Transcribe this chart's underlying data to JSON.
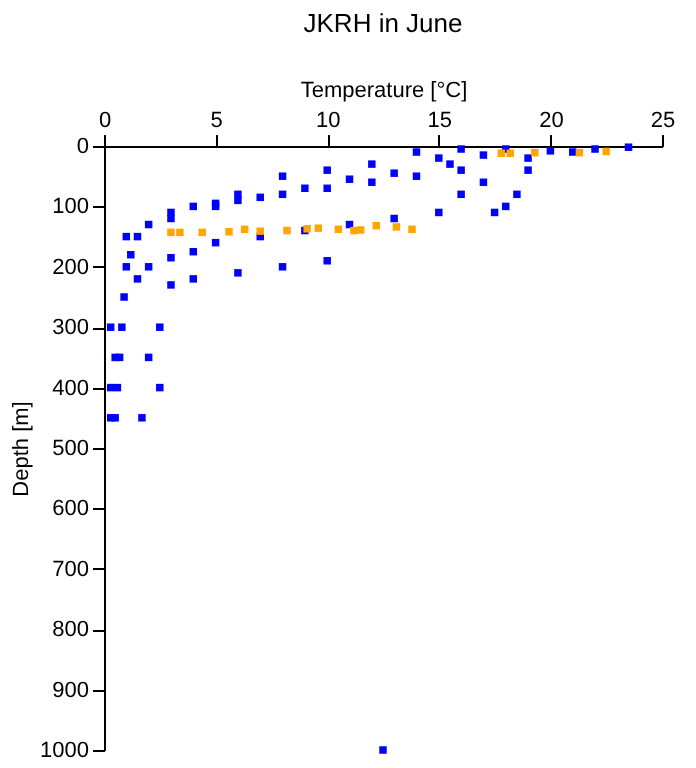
{
  "chart_data": {
    "type": "scatter",
    "title": "JKRH in June",
    "xlabel": "Temperature [°C]",
    "ylabel": "Depth [m]",
    "xlim": [
      0,
      25
    ],
    "xticks": [
      0,
      5,
      10,
      15,
      20,
      25
    ],
    "ylim": [
      1000,
      0
    ],
    "yticks": [
      0,
      100,
      200,
      300,
      400,
      500,
      600,
      700,
      800,
      900,
      1000
    ],
    "grid": false,
    "marker": "square",
    "series": [
      {
        "color": "#0000ff",
        "x": [
          23.5,
          22,
          20,
          18,
          17,
          16,
          15,
          14,
          12,
          10,
          8,
          6,
          4,
          3,
          2,
          1.5,
          1.2,
          1,
          0.9,
          0.8,
          0.7,
          0.6,
          0.5,
          17,
          16,
          15,
          13,
          11,
          9,
          7,
          5,
          4,
          3,
          2,
          1.5,
          10,
          8,
          6,
          4,
          3,
          17.5,
          18,
          18.5,
          19,
          16,
          14,
          12,
          10,
          8,
          6,
          5,
          3,
          1,
          0.3,
          2.5,
          0.5,
          2,
          0.3,
          2.5,
          0.3,
          1.7,
          12.5,
          21,
          19,
          15.5,
          13,
          11,
          9,
          7,
          5
        ],
        "values": [
          2,
          5,
          8,
          5,
          15,
          5,
          20,
          10,
          30,
          40,
          50,
          80,
          100,
          110,
          130,
          150,
          180,
          200,
          250,
          300,
          350,
          400,
          450,
          60,
          80,
          110,
          120,
          130,
          140,
          150,
          160,
          175,
          185,
          200,
          220,
          190,
          200,
          210,
          220,
          230,
          110,
          100,
          80,
          40,
          40,
          50,
          60,
          70,
          80,
          90,
          100,
          120,
          150,
          300,
          300,
          350,
          350,
          400,
          400,
          450,
          450,
          1000,
          10,
          20,
          30,
          45,
          55,
          70,
          85,
          95
        ]
      },
      {
        "color": "#ffa500",
        "x": [
          17.8,
          18.2,
          19.3,
          21.3,
          22.5,
          3,
          3.4,
          4.4,
          5.6,
          6.3,
          7,
          8.2,
          9.1,
          9.6,
          10.5,
          11.2,
          11.5,
          12.2,
          13.1,
          13.8
        ],
        "values": [
          12,
          12,
          11,
          11,
          9,
          143,
          143,
          143,
          142,
          138,
          141,
          140,
          137,
          136,
          138,
          140,
          139,
          132,
          134,
          138
        ]
      }
    ]
  }
}
